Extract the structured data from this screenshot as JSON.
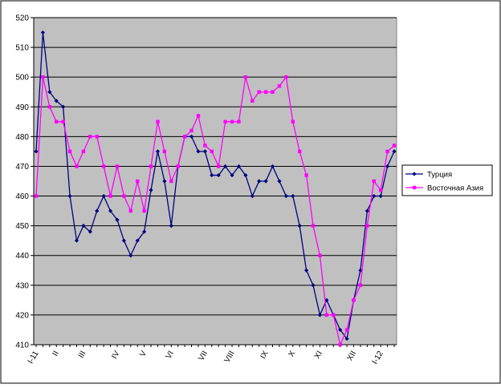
{
  "chart_data": {
    "type": "line",
    "title": "",
    "xlabel": "",
    "ylabel": "",
    "ylim": [
      410,
      520
    ],
    "yticks": [
      410,
      420,
      430,
      440,
      450,
      460,
      470,
      480,
      490,
      500,
      510,
      520
    ],
    "grid": "horizontal",
    "legend_position": "right",
    "plot_background": "#c0c0c0",
    "n_points": 54,
    "xtick_labels": [
      {
        "index": 0,
        "label": "I-11"
      },
      {
        "index": 3,
        "label": "II"
      },
      {
        "index": 7,
        "label": "III"
      },
      {
        "index": 12,
        "label": "IV"
      },
      {
        "index": 16,
        "label": "V"
      },
      {
        "index": 20,
        "label": "VI"
      },
      {
        "index": 25,
        "label": "VII"
      },
      {
        "index": 29,
        "label": "VIII"
      },
      {
        "index": 34,
        "label": "IX"
      },
      {
        "index": 38,
        "label": "X"
      },
      {
        "index": 42,
        "label": "XI"
      },
      {
        "index": 47,
        "label": "XII"
      },
      {
        "index": 51,
        "label": "I-12"
      }
    ],
    "series": [
      {
        "name": "Турция",
        "color": "#000080",
        "marker": "diamond",
        "values": [
          475,
          515,
          495,
          492,
          490,
          460,
          445,
          450,
          448,
          455,
          460,
          455,
          452,
          445,
          440,
          445,
          448,
          462,
          475,
          465,
          450,
          470,
          480,
          480,
          475,
          475,
          467,
          467,
          470,
          467,
          470,
          467,
          460,
          465,
          465,
          470,
          465,
          460,
          460,
          450,
          435,
          430,
          420,
          425,
          420,
          415,
          412,
          425,
          435,
          455,
          460,
          460,
          470,
          475
        ]
      },
      {
        "name": "Восточная Азия",
        "color": "#ff00ff",
        "marker": "square",
        "values": [
          460,
          500,
          490,
          485,
          485,
          475,
          470,
          475,
          480,
          480,
          470,
          460,
          470,
          460,
          455,
          465,
          455,
          470,
          485,
          475,
          465,
          470,
          480,
          482,
          487,
          477,
          475,
          470,
          485,
          485,
          485,
          500,
          492,
          495,
          495,
          495,
          497,
          500,
          485,
          475,
          467,
          450,
          440,
          420,
          420,
          410,
          415,
          425,
          430,
          450,
          465,
          462,
          475,
          477
        ]
      }
    ]
  }
}
